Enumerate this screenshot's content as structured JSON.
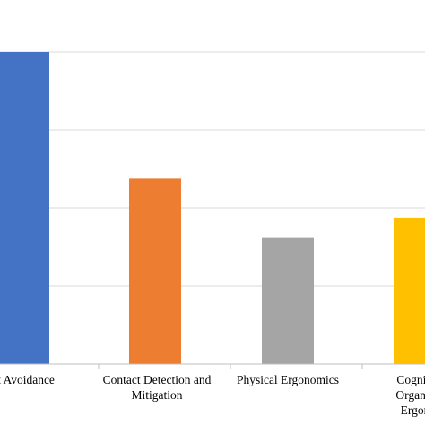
{
  "chart_data": {
    "type": "bar",
    "categories": [
      "Contact Avoidance",
      "Contact Detection and Mitigation",
      "Physical Ergonomics",
      "Cognitive and Organizational Ergonomics"
    ],
    "category_label_lines": [
      [
        "ct Avoidance"
      ],
      [
        "Contact Detection and",
        "Mitigation"
      ],
      [
        "Physical Ergonomics"
      ],
      [
        "Cognitiv",
        "Organiza",
        "Ergonc"
      ]
    ],
    "values": [
      8.0,
      4.75,
      3.25,
      3.75
    ],
    "colors": [
      "#4472C4",
      "#ED7D31",
      "#A5A5A5",
      "#FFC000"
    ],
    "ylim": [
      0,
      9.0
    ],
    "gridline_step": 1.0,
    "grid": true,
    "gridline_color": "#d9d9d9",
    "axis_color": "#bfbfbf",
    "title": "",
    "xlabel": "",
    "ylabel": ""
  }
}
